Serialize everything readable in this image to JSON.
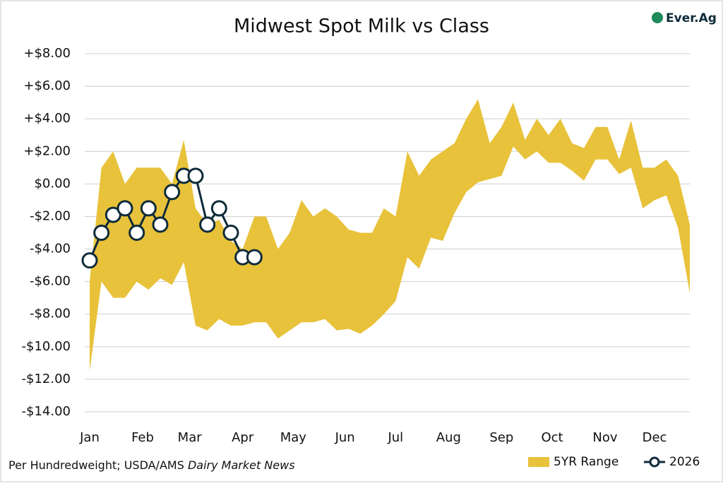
{
  "chart_data": {
    "type": "range-line",
    "title": "Midwest Spot Milk vs Class",
    "logo": "Ever.Ag",
    "source": {
      "text": "Per Hundredweight; USDA/AMS ",
      "italic": "Dairy Market News"
    },
    "x": [
      1,
      2,
      3,
      4,
      5,
      6,
      7,
      8,
      9,
      10,
      11,
      12,
      13,
      14,
      15,
      16,
      17,
      18,
      19,
      20,
      21,
      22,
      23,
      24,
      25,
      26,
      27,
      28,
      29,
      30,
      31,
      32,
      33,
      34,
      35,
      36,
      37,
      38,
      39,
      40,
      41,
      42,
      43,
      44,
      45,
      46,
      47,
      48,
      49,
      50,
      51,
      52
    ],
    "xlim": [
      1,
      52
    ],
    "xticks": [
      {
        "value": 1,
        "label": "Jan"
      },
      {
        "value": 5.5,
        "label": "Feb"
      },
      {
        "value": 9.5,
        "label": "Mar"
      },
      {
        "value": 14,
        "label": "Apr"
      },
      {
        "value": 18.3,
        "label": "May"
      },
      {
        "value": 22.7,
        "label": "Jun"
      },
      {
        "value": 27,
        "label": "Jul"
      },
      {
        "value": 31.5,
        "label": "Aug"
      },
      {
        "value": 36,
        "label": "Sep"
      },
      {
        "value": 40.3,
        "label": "Oct"
      },
      {
        "value": 44.8,
        "label": "Nov"
      },
      {
        "value": 49,
        "label": "Dec"
      }
    ],
    "ylim": [
      -14,
      8
    ],
    "yticks": [
      {
        "value": -14,
        "label": "-$14.00"
      },
      {
        "value": -12,
        "label": "-$12.00"
      },
      {
        "value": -10,
        "label": "-$10.00"
      },
      {
        "value": -8,
        "label": "-$8.00"
      },
      {
        "value": -6,
        "label": "-$6.00"
      },
      {
        "value": -4,
        "label": "-$4.00"
      },
      {
        "value": -2,
        "label": "-$2.00"
      },
      {
        "value": 0,
        "label": "$0.00"
      },
      {
        "value": 2,
        "label": "+$2.00"
      },
      {
        "value": 4,
        "label": "+$4.00"
      },
      {
        "value": 6,
        "label": "+$6.00"
      },
      {
        "value": 8,
        "label": "+$8.00"
      }
    ],
    "grid": true,
    "series": [
      {
        "name": "5YR Range",
        "color": "#e8c23a",
        "kind": "range",
        "high": [
          -6,
          1,
          2,
          0,
          1,
          1,
          1,
          0,
          2.7,
          -1.5,
          -2.5,
          -2.2,
          -3.5,
          -4,
          -2,
          -2,
          -4,
          -3,
          -1,
          -2,
          -1.5,
          -2,
          -2.8,
          -3,
          -3,
          -1.5,
          -2,
          2,
          0.5,
          1.5,
          2,
          2.5,
          4,
          5.2,
          2.5,
          3.5,
          5,
          2.7,
          4,
          3,
          4,
          2.5,
          2.2,
          3.5,
          3.5,
          1.5,
          3.9,
          1,
          1,
          1.5,
          0.5,
          -2.5
        ],
        "low": [
          -11.5,
          -6,
          -7,
          -7,
          -6,
          -6.5,
          -5.8,
          -6.2,
          -4.8,
          -8.7,
          -9,
          -8.3,
          -8.7,
          -8.7,
          -8.5,
          -8.5,
          -9.5,
          -9,
          -8.5,
          -8.5,
          -8.3,
          -9,
          -8.9,
          -9.2,
          -8.7,
          -8,
          -7.2,
          -4.5,
          -5.2,
          -3.3,
          -3.5,
          -1.8,
          -0.5,
          0.1,
          0.3,
          0.5,
          2.3,
          1.5,
          2,
          1.3,
          1.3,
          0.8,
          0.2,
          1.5,
          1.5,
          0.6,
          1,
          -1.5,
          -1,
          -0.7,
          -2.7,
          -6.7
        ]
      },
      {
        "name": "2026",
        "color": "#0f2b3a",
        "kind": "line",
        "values": [
          -4.7,
          -3,
          -1.9,
          -1.5,
          -3,
          -1.5,
          -2.5,
          -0.5,
          0.5,
          0.5,
          -2.5,
          -1.5,
          -3,
          -4.5,
          -4.5,
          null,
          null,
          null,
          null,
          null,
          null,
          null,
          null,
          null,
          null,
          null,
          null,
          null,
          null,
          null,
          null,
          null,
          null,
          null,
          null,
          null,
          null,
          null,
          null,
          null,
          null,
          null,
          null,
          null,
          null,
          null,
          null,
          null,
          null,
          null,
          null,
          null
        ]
      }
    ]
  }
}
